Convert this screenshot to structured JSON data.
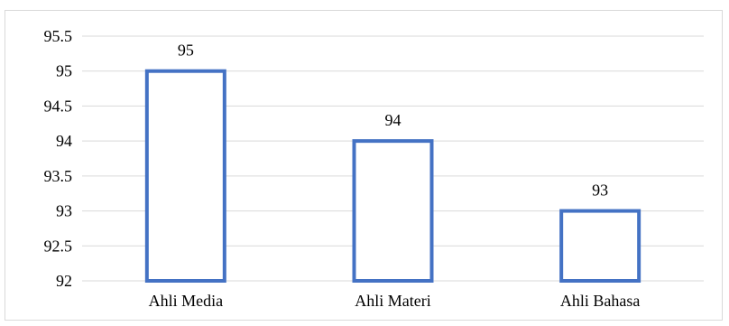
{
  "chart_data": {
    "type": "bar",
    "categories": [
      "Ahli Media",
      "Ahli Materi",
      "Ahli Bahasa"
    ],
    "values": [
      95,
      94,
      93
    ],
    "data_labels": [
      "95",
      "94",
      "93"
    ],
    "ylim": [
      92,
      95.5
    ],
    "yticks": [
      92,
      92.5,
      93,
      93.5,
      94,
      94.5,
      95,
      95.5
    ],
    "ytick_labels": [
      "92",
      "92.5",
      "93",
      "93.5",
      "94",
      "94.5",
      "95",
      "95.5"
    ],
    "title": "",
    "xlabel": "",
    "ylabel": "",
    "grid": true,
    "legend": "none",
    "bar_fill": "#ffffff",
    "bar_stroke": "#4472c4",
    "grid_color": "#d9d9d9"
  }
}
